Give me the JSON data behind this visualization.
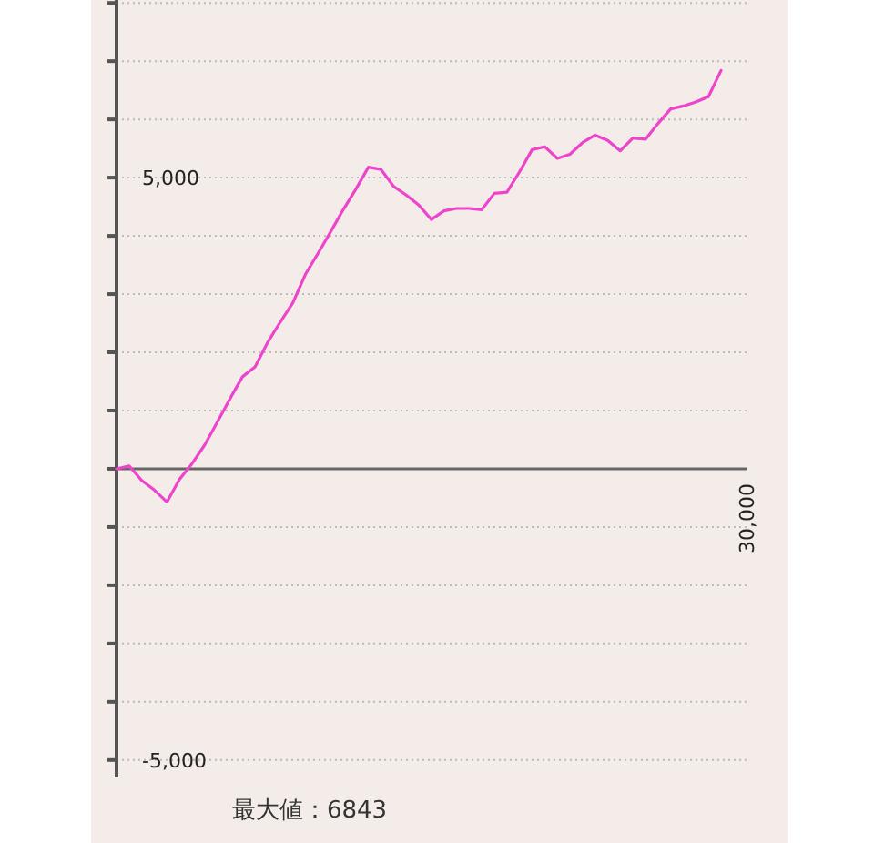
{
  "chart_data": {
    "type": "line",
    "categories": [
      null,
      null,
      null,
      null,
      null,
      null,
      null,
      null,
      null,
      null,
      null,
      null,
      null,
      null,
      null,
      null,
      null,
      null,
      null,
      null,
      null,
      null,
      null,
      null,
      null,
      null,
      null,
      null,
      null,
      null,
      null,
      null,
      null,
      null,
      null,
      null,
      null,
      null,
      null,
      null,
      null,
      null,
      null,
      null,
      null,
      null,
      null,
      null,
      null
    ],
    "series": [
      {
        "color": "#ee44cc",
        "values": [
          0,
          50,
          -200,
          -365,
          -570,
          -180,
          90,
          410,
          800,
          1200,
          1580,
          1750,
          2170,
          2520,
          2850,
          3340,
          3700,
          4070,
          4450,
          4800,
          5180,
          5140,
          4850,
          4700,
          4530,
          4280,
          4430,
          4470,
          4470,
          4450,
          4730,
          4750,
          5100,
          5480,
          5530,
          5330,
          5400,
          5600,
          5730,
          5640,
          5460,
          5680,
          5660,
          5930,
          6180,
          6230,
          6300,
          6390,
          6840
        ]
      }
    ],
    "ylim": [
      -5300,
      8050
    ],
    "yticks": [
      {
        "value": -5000,
        "label": "-5,000"
      },
      {
        "value": -4000,
        "label": null
      },
      {
        "value": -3000,
        "label": null
      },
      {
        "value": -2000,
        "label": null
      },
      {
        "value": -1000,
        "label": null
      },
      {
        "value": 0,
        "label": null
      },
      {
        "value": 1000,
        "label": null
      },
      {
        "value": 2000,
        "label": null
      },
      {
        "value": 3000,
        "label": null
      },
      {
        "value": 4000,
        "label": null
      },
      {
        "value": 5000,
        "label": "5,000"
      },
      {
        "value": 6000,
        "label": null
      },
      {
        "value": 7000,
        "label": null
      },
      {
        "value": 8000,
        "label": null
      }
    ],
    "grid": "y",
    "marker": "none",
    "line_style": "solid",
    "annotations": [
      "30,000",
      "最大値：6843"
    ]
  }
}
